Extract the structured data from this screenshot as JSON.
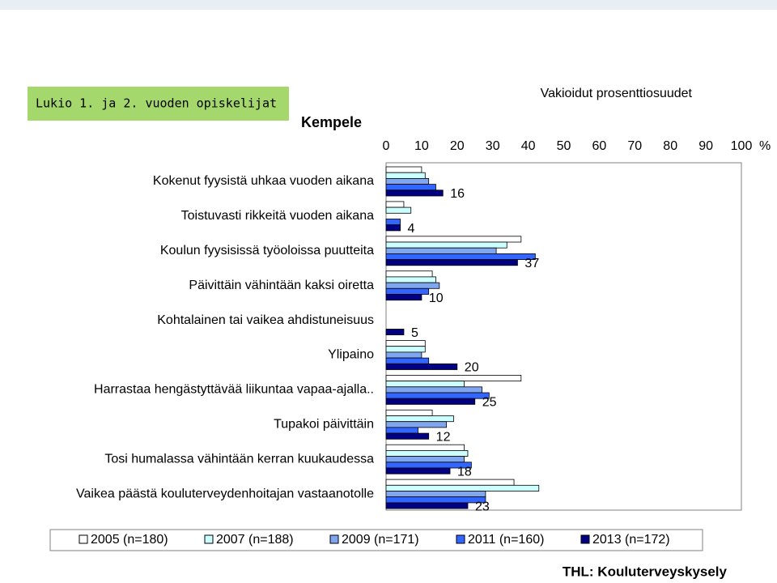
{
  "chart_data": {
    "type": "hbar",
    "title": "Kempele",
    "subtitle": "Lukio 1. ja 2. vuoden opiskelijat",
    "axis_label": "Vakioidut prosenttiosuudet",
    "unit": "%",
    "source": "THL: Kouluterveyskysely",
    "categories": [
      "Kokenut fyysistä uhkaa vuoden aikana",
      "Toistuvasti rikkeitä vuoden aikana",
      "Koulun fyysisissä työoloissa puutteita",
      "Päivittäin vähintään kaksi oiretta",
      "Kohtalainen tai vaikea ahdistuneisuus",
      "Ylipaino",
      "Harrastaa hengästyttävää liikuntaa vapaa-ajalla..",
      "Tupakoi päivittäin",
      "Tosi humalassa vähintään kerran kuukaudessa",
      "Vaikea päästä kouluterveydenhoitajan vastaanotolle"
    ],
    "series": [
      {
        "name": "2005 (n=180)",
        "color": "#ffffff",
        "values": [
          10,
          5,
          38,
          13,
          null,
          11,
          38,
          13,
          22,
          36
        ]
      },
      {
        "name": "2007 (n=188)",
        "color": "#ccffff",
        "values": [
          11,
          7,
          34,
          14,
          null,
          11,
          22,
          19,
          23,
          43
        ]
      },
      {
        "name": "2009 (n=171)",
        "color": "#7fa6ee",
        "values": [
          12,
          null,
          31,
          15,
          null,
          10,
          27,
          17,
          22,
          28
        ]
      },
      {
        "name": "2011 (n=160)",
        "color": "#3366ff",
        "values": [
          14,
          4,
          42,
          12,
          null,
          12,
          29,
          9,
          24,
          28
        ]
      },
      {
        "name": "2013 (n=172)",
        "color": "#000080",
        "values": [
          16,
          4,
          37,
          10,
          5,
          20,
          25,
          12,
          18,
          23
        ]
      }
    ],
    "data_labels_series": 4,
    "xlim": [
      0,
      100
    ],
    "xticks": [
      0,
      10,
      20,
      30,
      40,
      50,
      60,
      70,
      80,
      90,
      100
    ]
  }
}
